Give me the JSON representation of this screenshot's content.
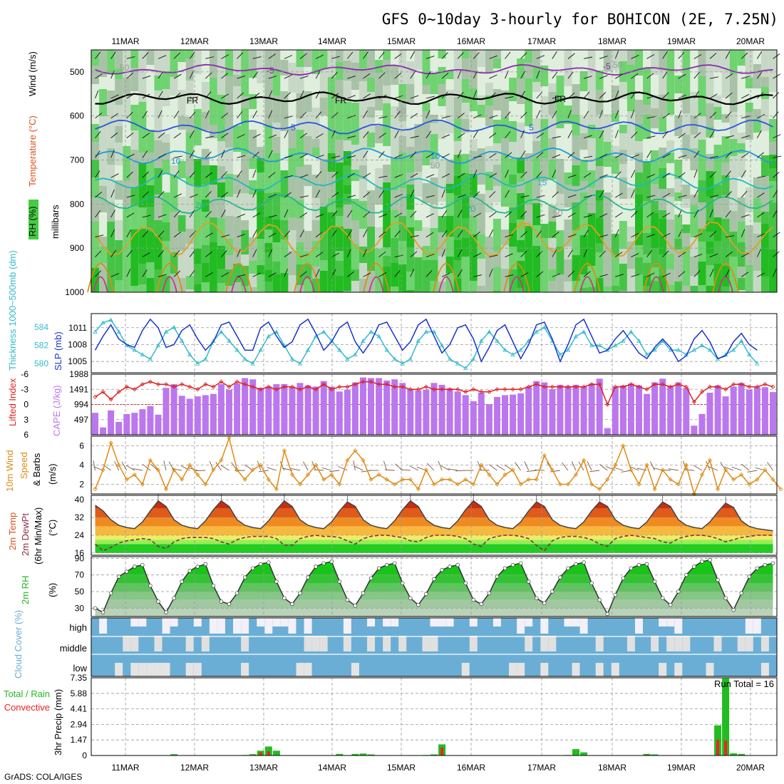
{
  "title": "GFS 0~10day 3-hourly for BOHICON (2E, 7.25N)",
  "footer": "GrADS: COLA/IGES",
  "colors": {
    "grid": "#999999",
    "rh_green": "#44cc44",
    "slp": "#1a33cc",
    "thickness": "#33bbcc",
    "li": "#dd2222",
    "cape": "#bb77ee",
    "wind10": "#e08a10",
    "dewpt": "#8c2a40",
    "rh2m": "#22bb22",
    "cloud": "#6aaed6",
    "precip_total": "#22bb22",
    "precip_conv": "#ee2222"
  },
  "chart_data": [
    {
      "id": "upper",
      "type": "heatmap",
      "ylabel": "millibars",
      "legend_labels": [
        "RH (%)",
        "Temperature (°C)",
        "Wind (m/s)"
      ],
      "x_tick_labels": [
        "11MAR",
        "12MAR",
        "13MAR",
        "14MAR",
        "15MAR",
        "16MAR",
        "17MAR",
        "18MAR",
        "19MAR",
        "20MAR"
      ],
      "y_tick_labels": [
        "500",
        "600",
        "700",
        "800",
        "900",
        "1000"
      ],
      "ylim": [
        1000,
        450
      ],
      "contour_labels": [
        "-5",
        "-5",
        "FR",
        "FR",
        "FR",
        "5",
        "5",
        "10",
        "10",
        "15",
        "20",
        "20",
        "25",
        "50",
        "50",
        "50",
        "50",
        "50"
      ],
      "temperature_contours": [
        {
          "label": "-5",
          "level": 495,
          "color": "#8a2bb0"
        },
        {
          "label": "FR",
          "level": 560,
          "color": "#000000"
        },
        {
          "label": "5",
          "level": 625,
          "color": "#2a55dd"
        },
        {
          "label": "10",
          "level": 690,
          "color": "#1e9bd6"
        },
        {
          "label": "15",
          "level": 750,
          "color": "#20b8bb"
        },
        {
          "label": "20",
          "level": 800,
          "color": "#1eb888"
        },
        {
          "label": "25",
          "level": 880,
          "color": "#e0a020"
        }
      ]
    },
    {
      "id": "slp",
      "type": "line",
      "ylabel_left": "Thickness 1000~500mb (dm)",
      "ylabel_right": "SLP (mb)",
      "left_ticks": [
        "584",
        "582",
        "580"
      ],
      "right_ticks": [
        "1011",
        "1008",
        "1005"
      ],
      "ylim_slp": [
        1003,
        1013.5
      ],
      "ylim_thick": [
        579,
        585.5
      ],
      "slp": [
        1007.0,
        1009.5,
        1011.5,
        1009.0,
        1008.0,
        1007.5,
        1010.5,
        1012.5,
        1011.0,
        1007.5,
        1008.0,
        1010.5,
        1011.5,
        1009.0,
        1007.0,
        1008.5,
        1011.5,
        1012.0,
        1009.5,
        1007.0,
        1007.0,
        1011.0,
        1012.0,
        1009.5,
        1007.5,
        1008.5,
        1011.5,
        1012.5,
        1010.0,
        1007.0,
        1008.5,
        1011.0,
        1012.0,
        1008.5,
        1006.5,
        1008.5,
        1011.5,
        1012.0,
        1009.5,
        1007.0,
        1008.5,
        1011.5,
        1012.5,
        1009.5,
        1006.5,
        1008.0,
        1011.0,
        1011.5,
        1009.0,
        1005.0,
        1007.5,
        1010.5,
        1011.5,
        1008.5,
        1005.5,
        1008.0,
        1011.5,
        1012.0,
        1009.0,
        1005.0,
        1008.0,
        1011.5,
        1012.5,
        1009.5,
        1006.5,
        1007.0,
        1009.0,
        1010.5,
        1008.5,
        1006.5,
        1005.5,
        1007.5,
        1009.0,
        1007.5,
        1005.0,
        1006.0,
        1009.0,
        1010.5,
        1008.5,
        1005.5,
        1006.0,
        1008.5,
        1010.0,
        1008.0,
        1007.0
      ],
      "thickness": [
        583.5,
        584.5,
        584.8,
        583.5,
        582.0,
        581.5,
        581.0,
        580.5,
        582.0,
        583.5,
        584.0,
        582.5,
        581.0,
        580.0,
        580.5,
        582.5,
        583.5,
        582.5,
        581.5,
        580.5,
        580.0,
        581.5,
        583.0,
        583.5,
        582.0,
        580.5,
        580.0,
        581.5,
        583.0,
        583.5,
        582.5,
        581.5,
        580.5,
        581.0,
        582.5,
        583.5,
        583.0,
        581.5,
        580.5,
        580.0,
        580.5,
        582.5,
        583.5,
        583.5,
        582.0,
        580.5,
        580.0,
        579.5,
        580.5,
        582.5,
        583.5,
        582.5,
        581.5,
        581.0,
        581.5,
        582.5,
        583.5,
        584.0,
        582.5,
        581.0,
        581.5,
        583.0,
        583.5,
        582.0,
        582.0,
        581.5,
        582.0,
        582.5,
        583.5,
        582.5,
        581.0,
        581.5,
        582.5,
        581.5,
        581.5,
        581.0,
        581.5,
        582.0,
        581.5,
        580.5,
        581.0,
        581.5,
        582.5,
        581.0,
        580.0
      ]
    },
    {
      "id": "cape",
      "type": "bar",
      "ylabel_left": "Lifted Index",
      "ylabel_right": "CAPE (J/kg)",
      "left_ticks": [
        "-6",
        "-3",
        "0",
        "3",
        "6"
      ],
      "right_ticks": [
        "1988",
        "1491",
        "994",
        "497"
      ],
      "ylim_cape": [
        0,
        1988
      ],
      "ylim_li": [
        6,
        -6
      ],
      "cape": [
        720,
        240,
        800,
        420,
        680,
        720,
        840,
        940,
        660,
        1540,
        1660,
        1280,
        1180,
        1260,
        1300,
        1340,
        1660,
        1480,
        1680,
        1860,
        1820,
        1540,
        1580,
        1660,
        1660,
        1560,
        1700,
        1620,
        1580,
        1760,
        1580,
        1420,
        1480,
        1720,
        1880,
        1860,
        1860,
        1780,
        1820,
        1700,
        1500,
        1460,
        1480,
        1700,
        1640,
        1520,
        1420,
        1300,
        1100,
        1380,
        1000,
        1240,
        1300,
        1320,
        1360,
        1580,
        1760,
        1720,
        1500,
        1640,
        1600,
        1640,
        1580,
        1680,
        1840,
        220,
        1580,
        1620,
        1680,
        1620,
        1340,
        1720,
        1840,
        1600,
        1720,
        1540,
        300,
        680,
        1380,
        1620,
        1260,
        1580,
        1700,
        1480,
        1560,
        1560,
        1400
      ],
      "li": [
        -1.5,
        -2.5,
        -1.0,
        -2.5,
        -3.5,
        -3.0,
        -4.0,
        -4.5,
        -4.0,
        -4.0,
        -3.5,
        -4.0,
        -3.5,
        -3.0,
        -4.0,
        -3.5,
        -4.5,
        -3.5,
        -4.5,
        -4.0,
        -3.5,
        -3.0,
        -3.5,
        -3.0,
        -3.5,
        -3.5,
        -3.0,
        -3.5,
        -3.0,
        -4.0,
        -3.0,
        -3.5,
        -3.5,
        -4.0,
        -4.5,
        -4.5,
        -4.0,
        -4.0,
        -3.5,
        -3.5,
        -3.0,
        -3.0,
        -3.5,
        -3.0,
        -3.0,
        -3.0,
        -3.0,
        -2.5,
        -3.0,
        -2.5,
        -2.5,
        -3.0,
        -3.0,
        -3.0,
        -3.0,
        -3.5,
        -4.0,
        -3.5,
        -3.5,
        -3.5,
        -3.5,
        -3.5,
        -3.5,
        -4.0,
        -4.0,
        0.0,
        -3.5,
        -3.5,
        -4.0,
        -3.5,
        -3.0,
        -4.0,
        -4.0,
        -3.5,
        -4.0,
        -3.5,
        -0.5,
        -2.5,
        -3.5,
        -3.5,
        -3.0,
        -4.0,
        -4.0,
        -3.5,
        -3.5,
        -4.0,
        -3.5
      ]
    },
    {
      "id": "wind10",
      "type": "line",
      "ylabel": "10m Wind Speed (m/s) & Barbs",
      "left_ticks": [
        "6",
        "4",
        "2"
      ],
      "ylim": [
        1,
        7
      ],
      "speed": [
        1.5,
        3.5,
        6.3,
        4.0,
        2.5,
        3.0,
        2.0,
        4.5,
        3.5,
        1.5,
        3.5,
        2.5,
        4.0,
        3.0,
        2.0,
        3.5,
        4.5,
        6.8,
        3.5,
        2.5,
        3.5,
        4.0,
        2.5,
        1.5,
        5.5,
        3.0,
        2.0,
        3.0,
        4.0,
        2.5,
        3.0,
        2.0,
        4.5,
        5.5,
        4.5,
        2.5,
        3.0,
        2.5,
        2.0,
        2.5,
        2.5,
        1.5,
        3.5,
        2.0,
        2.5,
        2.5,
        2.0,
        2.5,
        2.0,
        4.0,
        3.0,
        2.0,
        3.0,
        3.5,
        2.0,
        2.5,
        2.5,
        5.0,
        3.5,
        2.0,
        2.0,
        3.0,
        4.5,
        2.0,
        1.5,
        2.5,
        4.0,
        6.0,
        3.5,
        2.0,
        4.0,
        1.5,
        3.5,
        2.5,
        2.0,
        4.0,
        1.0,
        3.0,
        4.5,
        1.5,
        3.5,
        2.5,
        3.0,
        2.0,
        2.5,
        3.5,
        2.5,
        1.5
      ]
    },
    {
      "id": "temp2m",
      "type": "area",
      "ylabel": "2m Temp 2m DewPt (6hr Min/Max) (°C)",
      "left_ticks": [
        "40",
        "32",
        "24",
        "16"
      ],
      "ylim": [
        15,
        42
      ],
      "temp": [
        37.5,
        35.0,
        31.0,
        28.5,
        27.5,
        27.0,
        30.0,
        35.0,
        39.5,
        37.0,
        31.0,
        28.5,
        27.5,
        27.0,
        30.5,
        35.5,
        39.5,
        37.0,
        31.0,
        28.5,
        27.5,
        27.0,
        30.5,
        35.5,
        39.5,
        37.0,
        31.0,
        28.5,
        27.5,
        27.0,
        30.0,
        35.0,
        39.0,
        37.0,
        31.0,
        28.5,
        27.5,
        27.0,
        30.5,
        35.5,
        39.5,
        37.0,
        31.0,
        28.5,
        27.5,
        27.0,
        30.5,
        35.5,
        39.5,
        37.0,
        31.0,
        28.5,
        27.5,
        27.0,
        30.0,
        35.0,
        39.0,
        37.0,
        31.0,
        28.5,
        27.5,
        27.0,
        30.0,
        35.0,
        39.0,
        37.0,
        31.0,
        28.5,
        27.5,
        27.0,
        30.0,
        35.0,
        39.0,
        37.0,
        31.0,
        28.5,
        27.5,
        27.0,
        30.0,
        34.5,
        38.5,
        36.5,
        30.5,
        28.0,
        27.0,
        26.5,
        26.0
      ],
      "dewpt": [
        20.0,
        17.0,
        18.5,
        20.5,
        21.5,
        22.0,
        22.5,
        22.0,
        19.0,
        18.0,
        21.0,
        22.5,
        23.0,
        23.0,
        23.0,
        22.5,
        21.0,
        20.0,
        22.0,
        23.0,
        23.5,
        23.5,
        23.5,
        22.5,
        19.5,
        19.5,
        22.5,
        23.5,
        24.0,
        23.5,
        23.5,
        23.0,
        21.5,
        20.0,
        22.5,
        23.5,
        24.0,
        24.0,
        23.5,
        23.0,
        21.5,
        21.0,
        23.0,
        24.0,
        24.0,
        24.0,
        23.5,
        22.5,
        20.0,
        19.0,
        22.5,
        23.5,
        24.0,
        24.0,
        23.5,
        22.5,
        19.5,
        17.0,
        21.5,
        23.0,
        23.5,
        23.5,
        23.0,
        22.0,
        20.0,
        19.0,
        22.5,
        23.5,
        24.0,
        23.5,
        23.0,
        22.5,
        21.0,
        20.5,
        22.5,
        23.5,
        24.0,
        24.0,
        23.5,
        22.5,
        21.0,
        22.0,
        23.0,
        23.5,
        24.0,
        24.0,
        24.0
      ]
    },
    {
      "id": "rh2m",
      "type": "area",
      "ylabel": "2m RH (%)",
      "left_ticks": [
        "90",
        "70",
        "50",
        "30"
      ],
      "ylim": [
        20,
        92
      ],
      "rh": [
        30,
        25,
        48,
        68,
        74,
        80,
        82,
        57,
        38,
        25,
        42,
        62,
        75,
        80,
        83,
        57,
        38,
        35,
        48,
        67,
        78,
        83,
        85,
        62,
        42,
        35,
        48,
        67,
        80,
        84,
        86,
        62,
        40,
        33,
        48,
        66,
        78,
        82,
        84,
        60,
        42,
        34,
        47,
        65,
        76,
        80,
        82,
        60,
        40,
        35,
        48,
        68,
        78,
        82,
        84,
        62,
        42,
        36,
        50,
        67,
        78,
        83,
        85,
        60,
        40,
        23,
        46,
        66,
        78,
        82,
        83,
        62,
        42,
        34,
        50,
        70,
        80,
        86,
        88,
        64,
        42,
        28,
        48,
        68,
        78,
        82,
        84
      ]
    },
    {
      "id": "cloud",
      "type": "heatmap",
      "ylabel": "Cloud Cover (%)",
      "row_labels": [
        "high",
        "middle",
        "low"
      ]
    },
    {
      "id": "precip",
      "type": "bar",
      "ylabel": "3hr Precip (mm)",
      "legend": [
        "Total / Rain",
        "Convective"
      ],
      "annotation": "Run Total = 16",
      "left_ticks": [
        "7.35",
        "5.88",
        "4.41",
        "2.94",
        "1.47",
        "0"
      ],
      "ylim": [
        0,
        7.35
      ],
      "total": [
        0,
        0,
        0,
        0,
        0,
        0,
        0,
        0,
        0,
        0,
        0.12,
        0,
        0,
        0,
        0,
        0,
        0,
        0,
        0,
        0.05,
        0.12,
        0.45,
        0.85,
        0.45,
        0,
        0,
        0,
        0,
        0,
        0,
        0,
        0.15,
        0,
        0.15,
        0.18,
        0.1,
        0,
        0,
        0,
        0,
        0,
        0,
        0.05,
        0.1,
        1.05,
        0,
        0,
        0,
        0,
        0,
        0,
        0,
        0,
        0,
        0,
        0,
        0,
        0,
        0,
        0,
        0.05,
        0.6,
        0.3,
        0,
        0,
        0,
        0,
        0,
        0,
        0,
        0.15,
        0.1,
        0,
        0,
        0,
        0,
        0,
        0,
        0,
        2.85,
        7.3,
        0.2,
        0.15,
        0,
        0,
        0,
        0
      ],
      "conv": [
        0,
        0,
        0,
        0,
        0,
        0,
        0,
        0,
        0,
        0,
        0,
        0,
        0,
        0,
        0,
        0,
        0,
        0,
        0,
        0,
        0,
        0.3,
        0.4,
        0,
        0,
        0,
        0,
        0,
        0,
        0,
        0,
        0,
        0,
        0.05,
        0,
        0,
        0,
        0,
        0,
        0,
        0,
        0,
        0,
        0,
        0.75,
        0,
        0,
        0,
        0,
        0,
        0,
        0,
        0,
        0,
        0,
        0,
        0,
        0,
        0,
        0,
        0,
        0,
        0,
        0,
        0,
        0,
        0,
        0,
        0,
        0,
        0.08,
        0,
        0,
        0,
        0,
        0,
        0,
        0,
        0,
        1.5,
        1.4,
        0,
        0,
        0,
        0,
        0,
        0
      ],
      "x_tick_labels": [
        "11MAR",
        "12MAR",
        "13MAR",
        "14MAR",
        "15MAR",
        "16MAR",
        "17MAR",
        "18MAR",
        "19MAR",
        "20MAR"
      ]
    }
  ]
}
